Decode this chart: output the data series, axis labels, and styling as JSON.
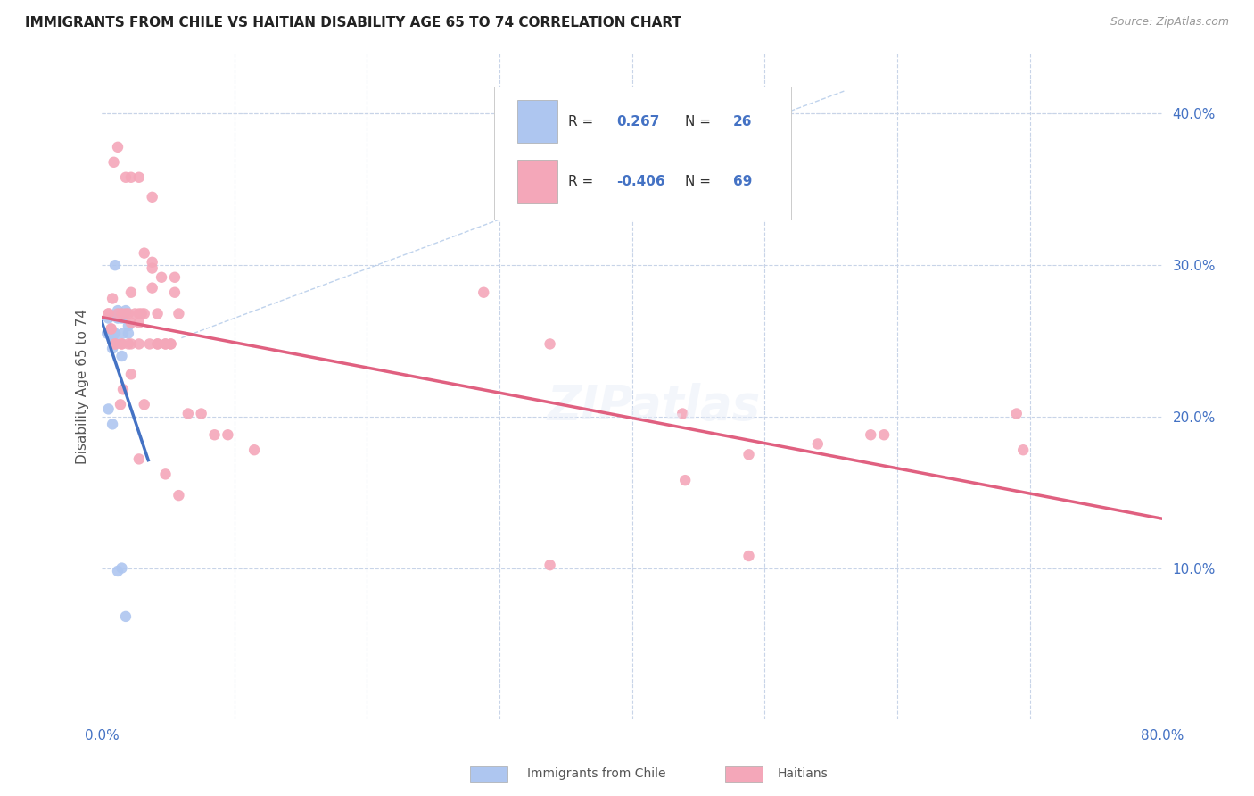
{
  "title": "IMMIGRANTS FROM CHILE VS HAITIAN DISABILITY AGE 65 TO 74 CORRELATION CHART",
  "source": "Source: ZipAtlas.com",
  "ylabel": "Disability Age 65 to 74",
  "xlim": [
    0.0,
    0.8
  ],
  "ylim": [
    0.0,
    0.44
  ],
  "ytick_positions": [
    0.1,
    0.2,
    0.3,
    0.4
  ],
  "ytick_labels": [
    "10.0%",
    "20.0%",
    "30.0%",
    "40.0%"
  ],
  "legend_r_chile": "0.267",
  "legend_n_chile": "26",
  "legend_r_haitian": "-0.406",
  "legend_n_haitian": "69",
  "chile_color": "#aec6f0",
  "haitian_color": "#f4a7b9",
  "chile_line_color": "#4472c4",
  "haitian_line_color": "#e06080",
  "dash_line_color": "#b0c8e8",
  "background_color": "#ffffff",
  "grid_color": "#c8d4e8",
  "chile_points": [
    [
      0.005,
      0.265
    ],
    [
      0.01,
      0.3
    ],
    [
      0.012,
      0.27
    ],
    [
      0.015,
      0.265
    ],
    [
      0.008,
      0.25
    ],
    [
      0.01,
      0.255
    ],
    [
      0.008,
      0.25
    ],
    [
      0.006,
      0.255
    ],
    [
      0.008,
      0.245
    ],
    [
      0.015,
      0.24
    ],
    [
      0.012,
      0.265
    ],
    [
      0.018,
      0.27
    ],
    [
      0.02,
      0.26
    ],
    [
      0.01,
      0.25
    ],
    [
      0.006,
      0.255
    ],
    [
      0.005,
      0.205
    ],
    [
      0.008,
      0.195
    ],
    [
      0.015,
      0.1
    ],
    [
      0.012,
      0.098
    ],
    [
      0.018,
      0.068
    ],
    [
      0.016,
      0.255
    ],
    [
      0.009,
      0.255
    ],
    [
      0.005,
      0.255
    ],
    [
      0.02,
      0.255
    ],
    [
      0.008,
      0.255
    ],
    [
      0.004,
      0.255
    ]
  ],
  "haitian_points": [
    [
      0.005,
      0.268
    ],
    [
      0.007,
      0.258
    ],
    [
      0.008,
      0.278
    ],
    [
      0.01,
      0.248
    ],
    [
      0.012,
      0.378
    ],
    [
      0.015,
      0.248
    ],
    [
      0.018,
      0.268
    ],
    [
      0.02,
      0.248
    ],
    [
      0.022,
      0.282
    ],
    [
      0.025,
      0.268
    ],
    [
      0.005,
      0.268
    ],
    [
      0.007,
      0.258
    ],
    [
      0.01,
      0.248
    ],
    [
      0.015,
      0.268
    ],
    [
      0.022,
      0.248
    ],
    [
      0.028,
      0.262
    ],
    [
      0.03,
      0.268
    ],
    [
      0.02,
      0.268
    ],
    [
      0.038,
      0.285
    ],
    [
      0.022,
      0.262
    ],
    [
      0.012,
      0.268
    ],
    [
      0.015,
      0.248
    ],
    [
      0.028,
      0.268
    ],
    [
      0.045,
      0.292
    ],
    [
      0.032,
      0.268
    ],
    [
      0.055,
      0.282
    ],
    [
      0.014,
      0.208
    ],
    [
      0.016,
      0.218
    ],
    [
      0.022,
      0.228
    ],
    [
      0.028,
      0.248
    ],
    [
      0.009,
      0.368
    ],
    [
      0.018,
      0.358
    ],
    [
      0.032,
      0.308
    ],
    [
      0.038,
      0.298
    ],
    [
      0.055,
      0.292
    ],
    [
      0.028,
      0.172
    ],
    [
      0.038,
      0.302
    ],
    [
      0.042,
      0.248
    ],
    [
      0.048,
      0.248
    ],
    [
      0.052,
      0.248
    ],
    [
      0.058,
      0.268
    ],
    [
      0.065,
      0.202
    ],
    [
      0.075,
      0.202
    ],
    [
      0.085,
      0.188
    ],
    [
      0.095,
      0.188
    ],
    [
      0.115,
      0.178
    ],
    [
      0.042,
      0.268
    ],
    [
      0.048,
      0.248
    ],
    [
      0.052,
      0.248
    ],
    [
      0.036,
      0.248
    ],
    [
      0.032,
      0.208
    ],
    [
      0.022,
      0.358
    ],
    [
      0.028,
      0.358
    ],
    [
      0.038,
      0.345
    ],
    [
      0.042,
      0.248
    ],
    [
      0.048,
      0.162
    ],
    [
      0.058,
      0.148
    ],
    [
      0.288,
      0.282
    ],
    [
      0.338,
      0.248
    ],
    [
      0.438,
      0.202
    ],
    [
      0.488,
      0.108
    ],
    [
      0.54,
      0.182
    ],
    [
      0.59,
      0.188
    ],
    [
      0.69,
      0.202
    ],
    [
      0.338,
      0.102
    ],
    [
      0.44,
      0.158
    ],
    [
      0.488,
      0.175
    ],
    [
      0.58,
      0.188
    ],
    [
      0.695,
      0.178
    ]
  ]
}
